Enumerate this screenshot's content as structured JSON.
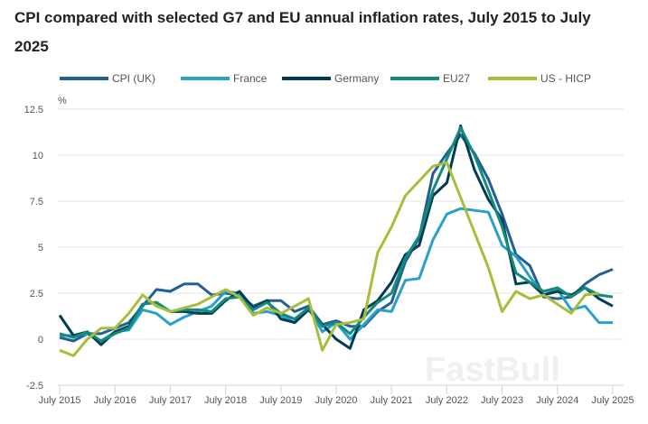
{
  "chart_data": {
    "type": "line",
    "title": "CPI compared with selected G7 and EU annual inflation rates, July 2015 to July 2025",
    "ylabel": "%",
    "xlabel": "",
    "ylim": [
      -2.5,
      12.5
    ],
    "yticks": [
      "-2.5",
      "0",
      "2.5",
      "5",
      "7.5",
      "10",
      "12.5"
    ],
    "xticks": [
      "July 2015",
      "July 2016",
      "July 2017",
      "July 2018",
      "July 2019",
      "July 2020",
      "July 2021",
      "July 2022",
      "July 2023",
      "July 2024",
      "July 2025"
    ],
    "grid": "horizontal",
    "legend": "top",
    "x": [
      "Jul 2015",
      "Oct 2015",
      "Jan 2016",
      "Apr 2016",
      "Jul 2016",
      "Oct 2016",
      "Jan 2017",
      "Apr 2017",
      "Jul 2017",
      "Oct 2017",
      "Jan 2018",
      "Apr 2018",
      "Jul 2018",
      "Oct 2018",
      "Jan 2019",
      "Apr 2019",
      "Jul 2019",
      "Oct 2019",
      "Jan 2020",
      "Apr 2020",
      "Jul 2020",
      "Oct 2020",
      "Jan 2021",
      "Apr 2021",
      "Jul 2021",
      "Oct 2021",
      "Jan 2022",
      "Apr 2022",
      "Jul 2022",
      "Oct 2022",
      "Jan 2023",
      "Apr 2023",
      "Jul 2023",
      "Oct 2023",
      "Jan 2024",
      "Apr 2024",
      "Jul 2024",
      "Oct 2024",
      "Jan 2025",
      "Apr 2025",
      "Jul 2025"
    ],
    "series": [
      {
        "name": "CPI (UK)",
        "color": "#206095",
        "values": [
          0.1,
          -0.1,
          0.3,
          0.3,
          0.6,
          0.9,
          1.8,
          2.7,
          2.6,
          3.0,
          3.0,
          2.4,
          2.5,
          2.4,
          1.8,
          2.1,
          2.1,
          1.5,
          1.8,
          0.8,
          1.0,
          0.7,
          0.7,
          1.5,
          2.0,
          4.2,
          5.5,
          9.0,
          10.1,
          11.1,
          10.1,
          8.7,
          6.8,
          4.6,
          4.0,
          2.3,
          2.2,
          2.3,
          3.0,
          3.5,
          3.8
        ]
      },
      {
        "name": "France",
        "color": "#27a0cc",
        "values": [
          0.2,
          0.2,
          0.3,
          -0.1,
          0.4,
          0.5,
          1.6,
          1.4,
          0.8,
          1.2,
          1.5,
          1.8,
          2.6,
          2.5,
          1.4,
          1.5,
          1.3,
          0.9,
          1.7,
          0.4,
          0.9,
          0.0,
          0.8,
          1.6,
          1.5,
          3.2,
          3.3,
          5.4,
          6.8,
          7.1,
          7.0,
          6.9,
          5.1,
          4.5,
          3.4,
          2.4,
          2.7,
          1.6,
          1.8,
          0.9,
          0.9
        ]
      },
      {
        "name": "Germany",
        "color": "#003c57",
        "values": [
          1.3,
          0.2,
          0.4,
          -0.3,
          0.4,
          0.7,
          1.9,
          2.0,
          1.5,
          1.5,
          1.4,
          1.4,
          2.1,
          2.6,
          1.7,
          2.1,
          1.1,
          0.9,
          1.6,
          0.8,
          0.0,
          -0.5,
          1.6,
          2.1,
          3.1,
          4.6,
          5.1,
          7.8,
          8.5,
          11.6,
          9.2,
          7.6,
          6.5,
          3.0,
          3.1,
          2.4,
          2.6,
          2.4,
          2.8,
          2.2,
          1.8
        ]
      },
      {
        "name": "EU27",
        "color": "#118c7b",
        "values": [
          0.3,
          0.1,
          0.4,
          -0.1,
          0.3,
          0.6,
          1.9,
          2.0,
          1.5,
          1.6,
          1.6,
          1.5,
          2.2,
          2.3,
          1.6,
          2.0,
          1.4,
          1.1,
          1.7,
          0.7,
          0.9,
          0.3,
          1.2,
          2.0,
          2.5,
          4.4,
          5.6,
          8.1,
          9.8,
          11.5,
          10.0,
          8.1,
          6.1,
          3.6,
          3.1,
          2.6,
          2.8,
          2.3,
          2.8,
          2.4,
          2.3
        ]
      },
      {
        "name": "US - HICP",
        "color": "#a8bd3a",
        "values": [
          -0.6,
          -0.9,
          0.0,
          0.6,
          0.6,
          1.4,
          2.4,
          1.8,
          1.5,
          1.7,
          1.9,
          2.3,
          2.7,
          2.3,
          1.3,
          1.7,
          1.4,
          1.8,
          2.2,
          -0.6,
          0.8,
          0.9,
          1.1,
          4.7,
          6.1,
          7.8,
          8.6,
          9.4,
          9.6,
          7.7,
          5.8,
          3.9,
          1.5,
          2.6,
          2.2,
          2.4,
          1.9,
          1.4,
          2.4,
          2.5,
          null
        ]
      }
    ]
  }
}
